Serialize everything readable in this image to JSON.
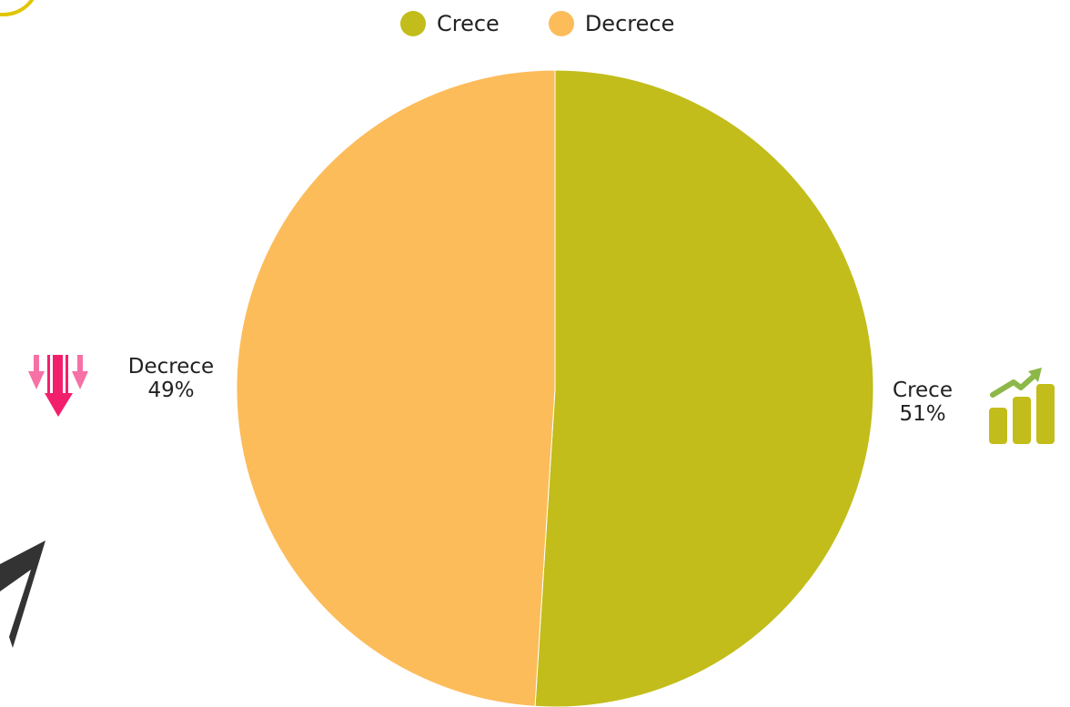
{
  "chart_data": {
    "type": "pie",
    "legend_position": "top",
    "slices": [
      {
        "name": "Crece",
        "value": 51,
        "label_value": "51%",
        "color": "#c2bd1a"
      },
      {
        "name": "Decrece",
        "value": 49,
        "label_value": "49%",
        "color": "#fcbc5a"
      }
    ]
  },
  "icons": {
    "decrease": "down-arrows-icon",
    "increase": "bar-chart-growth-icon",
    "decoration": "paper-plane-icon"
  }
}
